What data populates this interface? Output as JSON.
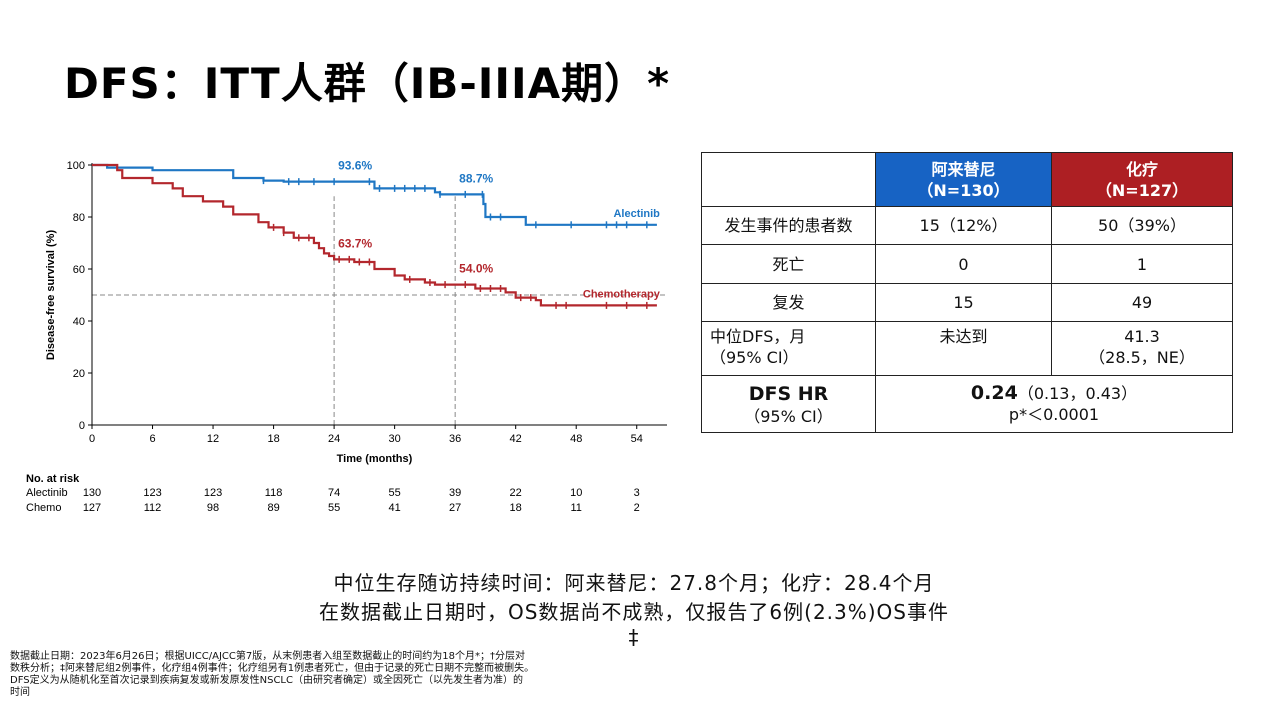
{
  "page": {
    "title": "DFS：ITT人群（IB-IIIA期）*",
    "summary_line_1": "中位生存随访持续时间：阿来替尼：27.8个月；化疗：28.4个月",
    "summary_line_2": "在数据截止日期时，OS数据尚不成熟，仅报告了6例(2.3%)OS事件",
    "summary_line_3": "‡",
    "footnotes": [
      "数据截止日期：2023年6月26日；根据UICC/AJCC第7版，从末例患者入组至数据截止的时间约为18个月*；†分层对",
      "数秩分析；‡阿来替尼组2例事件，化疗组4例事件；化疗组另有1例患者死亡，但由于记录的死亡日期不完整而被删失。",
      "DFS定义为从随机化至首次记录到疾病复发或新发原发性NSCLC（由研究者确定）或全因死亡（以先发生者为准）的",
      "时间"
    ]
  },
  "colors": {
    "alectinib": "#1f77c4",
    "chemo": "#b3272d",
    "header_alectinib": "#1763c4",
    "header_chemo": "#ad1f23",
    "reference": "#888888"
  },
  "table": {
    "header_alectinib": "阿来替尼",
    "header_alectinib_n": "（N=130）",
    "header_chemo": "化疗",
    "header_chemo_n": "（N=127）",
    "rows": [
      {
        "label": "发生事件的患者数",
        "alectinib": "15（12%）",
        "chemo": "50（39%）"
      },
      {
        "label": "死亡",
        "alectinib": "0",
        "chemo": "1"
      },
      {
        "label": "复发",
        "alectinib": "15",
        "chemo": "49"
      }
    ],
    "median_label": "中位DFS，月",
    "median_ci": "（95% CI）",
    "median_alectinib": "未达到",
    "median_chemo": "41.3",
    "median_chemo_ci": "（28.5，NE）",
    "hr_label": "DFS HR",
    "hr_ci_label": "（95% CI）",
    "hr_value": "0.24",
    "hr_ci": "（0.13，0.43）",
    "hr_p": "p*＜0.0001"
  },
  "chart_data": {
    "type": "line",
    "subtype": "kaplan-meier",
    "xlabel": "Time (months)",
    "ylabel": "Disease-free survival (%)",
    "xlim": [
      0,
      57
    ],
    "ylim": [
      0,
      100
    ],
    "xticks": [
      0,
      6,
      12,
      18,
      24,
      30,
      36,
      42,
      48,
      54
    ],
    "yticks": [
      0,
      20,
      40,
      60,
      80,
      100
    ],
    "reference_lines": {
      "vertical": [
        24,
        36
      ],
      "horizontal": [
        50
      ]
    },
    "series": [
      {
        "name": "Alectinib",
        "key": "alectinib",
        "label_position": "above-right-end",
        "steps": [
          [
            0,
            100
          ],
          [
            1.5,
            99
          ],
          [
            6,
            98
          ],
          [
            14,
            95
          ],
          [
            17,
            94
          ],
          [
            19,
            93.6
          ],
          [
            24.5,
            93.6
          ],
          [
            28,
            91
          ],
          [
            34,
            89.5
          ],
          [
            34.5,
            88.7
          ],
          [
            38.5,
            88.7
          ],
          [
            38.8,
            85
          ],
          [
            39,
            80
          ],
          [
            42.5,
            80
          ],
          [
            43,
            77
          ],
          [
            56,
            77
          ]
        ],
        "censor_times": [
          17,
          19.5,
          20.5,
          22,
          24,
          27.5,
          28.5,
          30,
          31,
          32,
          33,
          34.5,
          37,
          38.7,
          39.5,
          40.5,
          44,
          47.5,
          51,
          52,
          53,
          55
        ]
      },
      {
        "name": "Chemotherapy",
        "key": "chemo",
        "label_position": "above-right-end",
        "steps": [
          [
            0,
            100
          ],
          [
            2.5,
            98
          ],
          [
            3,
            95
          ],
          [
            6,
            93
          ],
          [
            8,
            91
          ],
          [
            9,
            88
          ],
          [
            11,
            86
          ],
          [
            13,
            84
          ],
          [
            14,
            81
          ],
          [
            16.5,
            78
          ],
          [
            17.5,
            76
          ],
          [
            19,
            74
          ],
          [
            20,
            72
          ],
          [
            22,
            70
          ],
          [
            22.5,
            68
          ],
          [
            23,
            66
          ],
          [
            23.5,
            65
          ],
          [
            24,
            63.7
          ],
          [
            26,
            62.7
          ],
          [
            28,
            60
          ],
          [
            30,
            57.5
          ],
          [
            31,
            56
          ],
          [
            33,
            54.8
          ],
          [
            34,
            54
          ],
          [
            38,
            52.5
          ],
          [
            41,
            51
          ],
          [
            42,
            49
          ],
          [
            44,
            48
          ],
          [
            44.5,
            46
          ],
          [
            56,
            46
          ]
        ],
        "censor_times": [
          18,
          19,
          20.5,
          21.5,
          24.5,
          25.5,
          26.5,
          27.5,
          31.5,
          33.5,
          35,
          37,
          38.5,
          39.5,
          40.5,
          42.5,
          43.5,
          46,
          47,
          51,
          53,
          55
        ]
      }
    ],
    "annotations": [
      {
        "text": "93.6%",
        "series": "alectinib",
        "x": 24,
        "y": 93.6
      },
      {
        "text": "88.7%",
        "series": "alectinib",
        "x": 36,
        "y": 88.7
      },
      {
        "text": "63.7%",
        "series": "chemo",
        "x": 24,
        "y": 63.7
      },
      {
        "text": "54.0%",
        "series": "chemo",
        "x": 36,
        "y": 54.0
      }
    ],
    "risk_table": {
      "title": "No. at risk",
      "times": [
        0,
        6,
        12,
        18,
        24,
        30,
        36,
        42,
        48,
        54
      ],
      "rows": [
        {
          "name": "Alectinib",
          "values": [
            130,
            123,
            123,
            118,
            74,
            55,
            39,
            22,
            10,
            3
          ]
        },
        {
          "name": "Chemo",
          "values": [
            127,
            112,
            98,
            89,
            55,
            41,
            27,
            18,
            11,
            2
          ]
        }
      ]
    }
  }
}
